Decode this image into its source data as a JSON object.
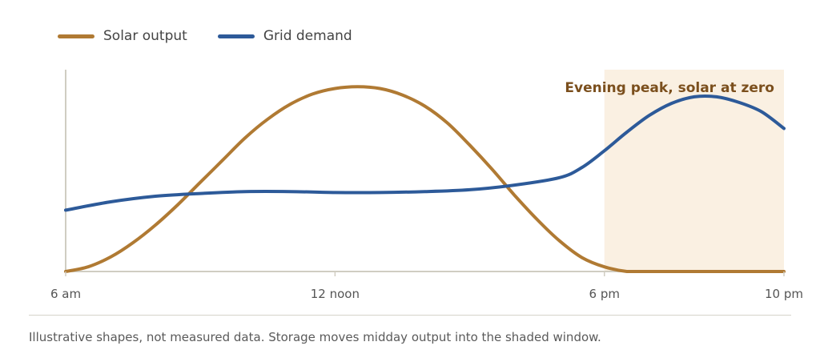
{
  "chart_data": {
    "type": "line",
    "x_ticks": [
      {
        "label": "6 am",
        "value": 6
      },
      {
        "label": "12 noon",
        "value": 12
      },
      {
        "label": "6 pm",
        "value": 18
      },
      {
        "label": "10 pm",
        "value": 22
      }
    ],
    "xlim": [
      6,
      22
    ],
    "ylim": [
      0,
      100
    ],
    "grid": false,
    "legend_position": "top-left",
    "series": [
      {
        "name": "Solar output",
        "color": "#b07a33",
        "x": [
          6,
          6.5,
          7,
          7.5,
          8,
          8.5,
          9,
          9.5,
          10,
          10.5,
          11,
          11.5,
          12,
          12.5,
          13,
          13.5,
          14,
          14.5,
          15,
          15.5,
          16,
          16.5,
          17,
          17.5,
          18,
          18.5,
          19,
          20,
          21,
          22
        ],
        "values": [
          0,
          2.5,
          7.8,
          15.5,
          25,
          36,
          48,
          60,
          72,
          82,
          90,
          95.5,
          98.5,
          99.5,
          98.5,
          95,
          89,
          80,
          68,
          55,
          41,
          28,
          16.5,
          7.5,
          2.5,
          0,
          0,
          0,
          0,
          0
        ]
      },
      {
        "name": "Grid demand",
        "color": "#2d5a99",
        "x": [
          6,
          7,
          8,
          9,
          10,
          11,
          12,
          13,
          14,
          15,
          16,
          17,
          17.5,
          18,
          18.5,
          19,
          19.5,
          20,
          20.5,
          21,
          21.5,
          22
        ],
        "values": [
          33,
          37.5,
          40.5,
          42,
          43,
          43,
          42.5,
          42.5,
          43,
          44,
          46.5,
          50.5,
          56,
          65,
          75,
          84,
          90.5,
          94,
          94,
          91,
          86,
          77
        ]
      }
    ],
    "shaded_region": {
      "x_start": 18,
      "x_end": 22,
      "color": "#faf0e2",
      "label": "Evening peak, solar at zero",
      "label_color": "#7b4f1d"
    },
    "axis_color": "#d0cdc2"
  },
  "footnote": "Illustrative shapes, not measured data. Storage moves midday output into the shaded window."
}
